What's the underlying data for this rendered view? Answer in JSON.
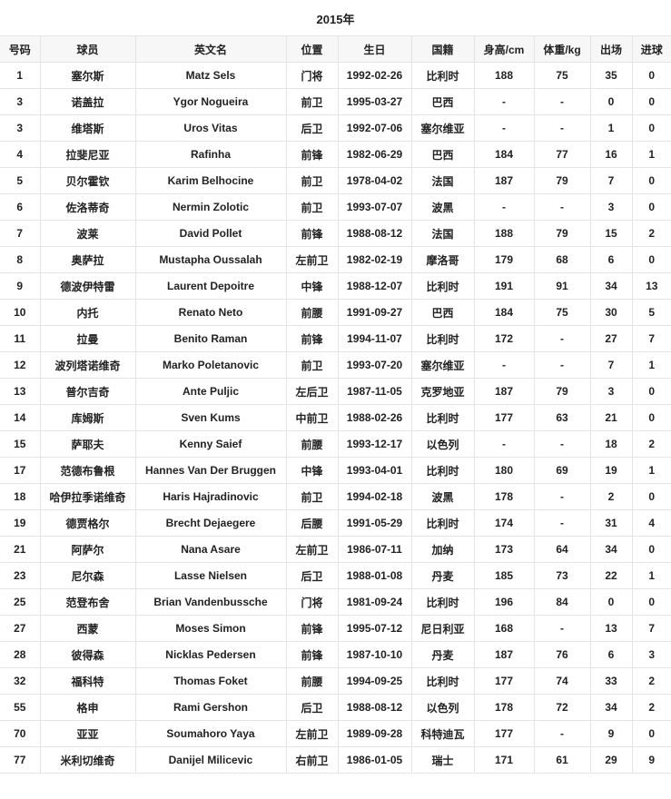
{
  "title": "2015年",
  "columns": [
    "号码",
    "球员",
    "英文名",
    "位置",
    "生日",
    "国籍",
    "身高/cm",
    "体重/kg",
    "出场",
    "进球"
  ],
  "rows": [
    [
      "1",
      "塞尔斯",
      "Matz Sels",
      "门将",
      "1992-02-26",
      "比利时",
      "188",
      "75",
      "35",
      "0"
    ],
    [
      "3",
      "诺盖拉",
      "Ygor Nogueira",
      "前卫",
      "1995-03-27",
      "巴西",
      "-",
      "-",
      "0",
      "0"
    ],
    [
      "3",
      "维塔斯",
      "Uros Vitas",
      "后卫",
      "1992-07-06",
      "塞尔维亚",
      "-",
      "-",
      "1",
      "0"
    ],
    [
      "4",
      "拉斐尼亚",
      "Rafinha",
      "前锋",
      "1982-06-29",
      "巴西",
      "184",
      "77",
      "16",
      "1"
    ],
    [
      "5",
      "贝尔霍钦",
      "Karim Belhocine",
      "前卫",
      "1978-04-02",
      "法国",
      "187",
      "79",
      "7",
      "0"
    ],
    [
      "6",
      "佐洛蒂奇",
      "Nermin Zolotic",
      "前卫",
      "1993-07-07",
      "波黑",
      "-",
      "-",
      "3",
      "0"
    ],
    [
      "7",
      "波莱",
      "David Pollet",
      "前锋",
      "1988-08-12",
      "法国",
      "188",
      "79",
      "15",
      "2"
    ],
    [
      "8",
      "奥萨拉",
      "Mustapha Oussalah",
      "左前卫",
      "1982-02-19",
      "摩洛哥",
      "179",
      "68",
      "6",
      "0"
    ],
    [
      "9",
      "德波伊特雷",
      "Laurent Depoitre",
      "中锋",
      "1988-12-07",
      "比利时",
      "191",
      "91",
      "34",
      "13"
    ],
    [
      "10",
      "内托",
      "Renato Neto",
      "前腰",
      "1991-09-27",
      "巴西",
      "184",
      "75",
      "30",
      "5"
    ],
    [
      "11",
      "拉曼",
      "Benito Raman",
      "前锋",
      "1994-11-07",
      "比利时",
      "172",
      "-",
      "27",
      "7"
    ],
    [
      "12",
      "波列塔诺维奇",
      "Marko Poletanovic",
      "前卫",
      "1993-07-20",
      "塞尔维亚",
      "-",
      "-",
      "7",
      "1"
    ],
    [
      "13",
      "普尔吉奇",
      "Ante Puljic",
      "左后卫",
      "1987-11-05",
      "克罗地亚",
      "187",
      "79",
      "3",
      "0"
    ],
    [
      "14",
      "库姆斯",
      "Sven Kums",
      "中前卫",
      "1988-02-26",
      "比利时",
      "177",
      "63",
      "21",
      "0"
    ],
    [
      "15",
      "萨耶夫",
      "Kenny Saief",
      "前腰",
      "1993-12-17",
      "以色列",
      "-",
      "-",
      "18",
      "2"
    ],
    [
      "17",
      "范德布鲁根",
      "Hannes Van Der Bruggen",
      "中锋",
      "1993-04-01",
      "比利时",
      "180",
      "69",
      "19",
      "1"
    ],
    [
      "18",
      "哈伊拉季诺维奇",
      "Haris Hajradinovic",
      "前卫",
      "1994-02-18",
      "波黑",
      "178",
      "-",
      "2",
      "0"
    ],
    [
      "19",
      "德贾格尔",
      "Brecht Dejaegere",
      "后腰",
      "1991-05-29",
      "比利时",
      "174",
      "-",
      "31",
      "4"
    ],
    [
      "21",
      "阿萨尔",
      "Nana Asare",
      "左前卫",
      "1986-07-11",
      "加纳",
      "173",
      "64",
      "34",
      "0"
    ],
    [
      "23",
      "尼尔森",
      "Lasse Nielsen",
      "后卫",
      "1988-01-08",
      "丹麦",
      "185",
      "73",
      "22",
      "1"
    ],
    [
      "25",
      "范登布舍",
      "Brian Vandenbussche",
      "门将",
      "1981-09-24",
      "比利时",
      "196",
      "84",
      "0",
      "0"
    ],
    [
      "27",
      "西蒙",
      "Moses Simon",
      "前锋",
      "1995-07-12",
      "尼日利亚",
      "168",
      "-",
      "13",
      "7"
    ],
    [
      "28",
      "彼得森",
      "Nicklas Pedersen",
      "前锋",
      "1987-10-10",
      "丹麦",
      "187",
      "76",
      "6",
      "3"
    ],
    [
      "32",
      "福科特",
      "Thomas Foket",
      "前腰",
      "1994-09-25",
      "比利时",
      "177",
      "74",
      "33",
      "2"
    ],
    [
      "55",
      "格申",
      "Rami Gershon",
      "后卫",
      "1988-08-12",
      "以色列",
      "178",
      "72",
      "34",
      "2"
    ],
    [
      "70",
      "亚亚",
      "Soumahoro Yaya",
      "左前卫",
      "1989-09-28",
      "科特迪瓦",
      "177",
      "-",
      "9",
      "0"
    ],
    [
      "77",
      "米利切维奇",
      "Danijel Milicevic",
      "右前卫",
      "1986-01-05",
      "瑞士",
      "171",
      "61",
      "29",
      "9"
    ]
  ]
}
